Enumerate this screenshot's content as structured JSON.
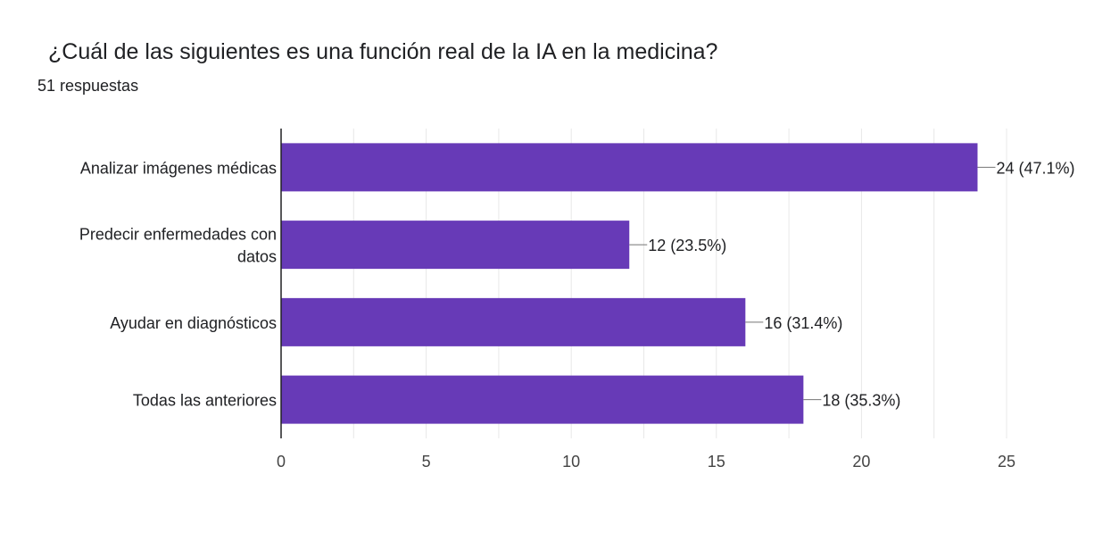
{
  "title": "¿Cuál de las siguientes es una función real de la IA en la medicina?",
  "response_count": "51 respuestas",
  "colors": {
    "bar": "#673ab7",
    "grid": "#e8e8e8",
    "axis": "#202124",
    "text": "#202124",
    "tick_text": "#444444"
  },
  "chart_data": {
    "type": "bar",
    "orientation": "horizontal",
    "title": "¿Cuál de las siguientes es una función real de la IA en la medicina?",
    "subtitle": "51 respuestas",
    "categories": [
      [
        "Analizar imágenes médicas"
      ],
      [
        "Predecir enfermedades con",
        "datos"
      ],
      [
        "Ayudar en diagnósticos"
      ],
      [
        "Todas las anteriores"
      ]
    ],
    "values": [
      24,
      12,
      16,
      18
    ],
    "data_labels": [
      "24 (47.1%)",
      "12 (23.5%)",
      "16 (31.4%)",
      "18 (35.3%)"
    ],
    "xlim": [
      0,
      25
    ],
    "xticks": [
      0,
      5,
      10,
      15,
      20,
      25
    ],
    "minor_grid_step": 2.5,
    "xlabel": "",
    "ylabel": "",
    "grid": true,
    "legend": "none"
  }
}
